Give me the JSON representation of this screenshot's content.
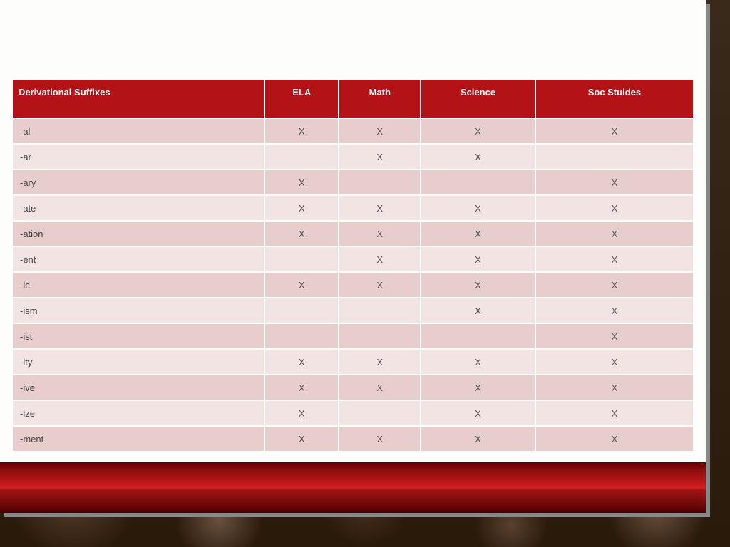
{
  "table": {
    "columns": [
      "Derivational Suffixes",
      "ELA",
      "Math",
      "Science",
      "Soc Stuides"
    ],
    "column_widths": [
      "20%",
      "20%",
      "20%",
      "20%",
      "20%"
    ],
    "mark": "X",
    "rows": [
      {
        "label": "-al",
        "cells": [
          "X",
          "X",
          "X",
          "X"
        ]
      },
      {
        "label": "-ar",
        "cells": [
          "",
          "X",
          "X",
          ""
        ]
      },
      {
        "label": "-ary",
        "cells": [
          "X",
          "",
          "",
          "X"
        ]
      },
      {
        "label": "-ate",
        "cells": [
          "X",
          "X",
          "X",
          "X"
        ]
      },
      {
        "label": "-ation",
        "cells": [
          "X",
          "X",
          "X",
          "X"
        ]
      },
      {
        "label": "-ent",
        "cells": [
          "",
          "X",
          "X",
          "X"
        ]
      },
      {
        "label": "-ic",
        "cells": [
          "X",
          "X",
          "X",
          "X"
        ]
      },
      {
        "label": "-ism",
        "cells": [
          "",
          "",
          "X",
          "X"
        ]
      },
      {
        "label": "-ist",
        "cells": [
          "",
          "",
          "",
          "X"
        ]
      },
      {
        "label": "-ity",
        "cells": [
          "X",
          "X",
          "X",
          "X"
        ]
      },
      {
        "label": "-ive",
        "cells": [
          "X",
          "X",
          "X",
          "X"
        ]
      },
      {
        "label": "-ize",
        "cells": [
          "X",
          "",
          "X",
          "X"
        ]
      },
      {
        "label": "-ment",
        "cells": [
          "X",
          "X",
          "X",
          "X"
        ]
      }
    ]
  },
  "style": {
    "header_bg": "#b31217",
    "header_fg": "#ffffff",
    "row_odd_bg": "#e8cdcd",
    "row_even_bg": "#f3e4e4",
    "text_color": "#444444",
    "font_size_header": 13,
    "font_size_cell": 13,
    "slide_bg": "#fdfdfc",
    "footer_gradient": [
      "#5c0000",
      "#8a0d0d",
      "#c81b1b",
      "#d42222",
      "#a01414",
      "#6c0808",
      "#4a0000"
    ],
    "slide_width": 990,
    "slide_height": 720
  }
}
